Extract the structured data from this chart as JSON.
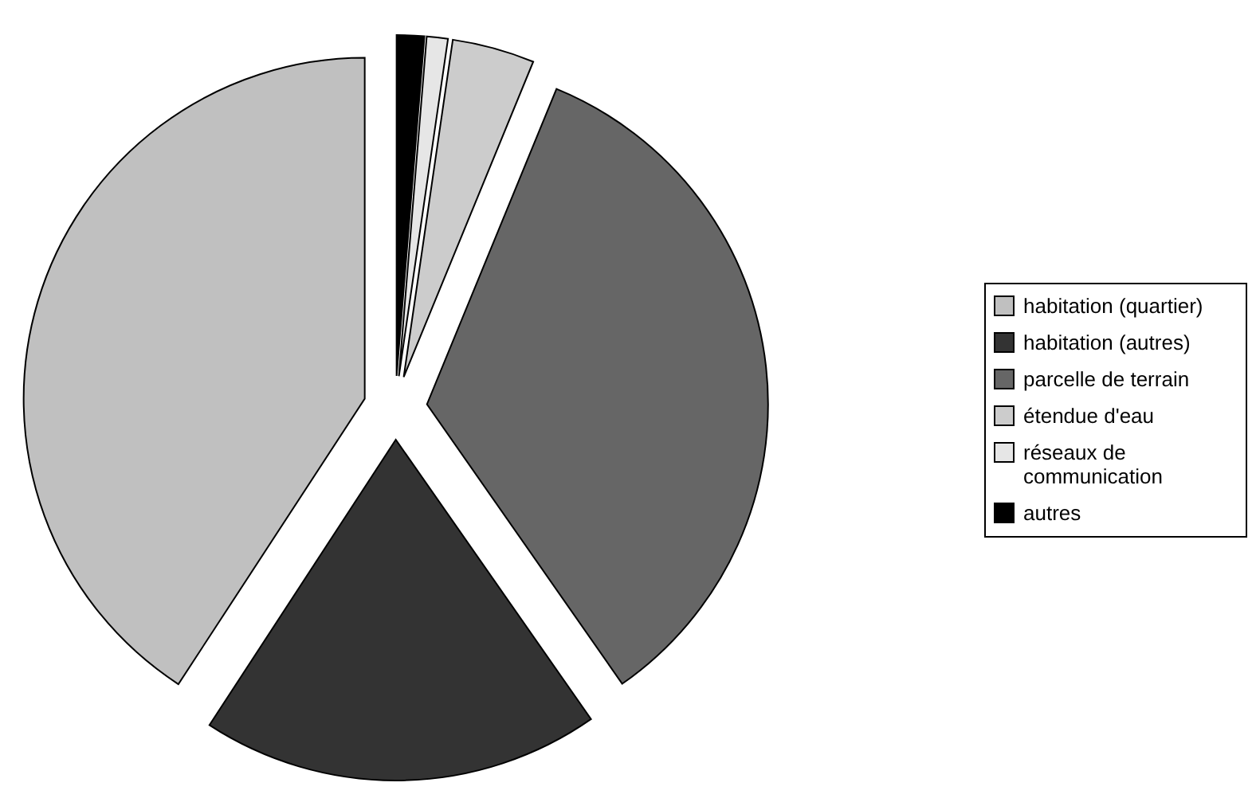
{
  "chart_data": {
    "type": "pie",
    "categories": [
      "habitation (quartier)",
      "habitation (autres)",
      "parcelle de terrain",
      "étendue d'eau",
      "réseaux de communication",
      "autres"
    ],
    "values": [
      40.8,
      18.9,
      34.1,
      3.9,
      1.0,
      1.3
    ],
    "colors": [
      "#c0c0c0",
      "#333333",
      "#666666",
      "#cccccc",
      "#e6e6e6",
      "#000000"
    ],
    "legend": "right"
  }
}
